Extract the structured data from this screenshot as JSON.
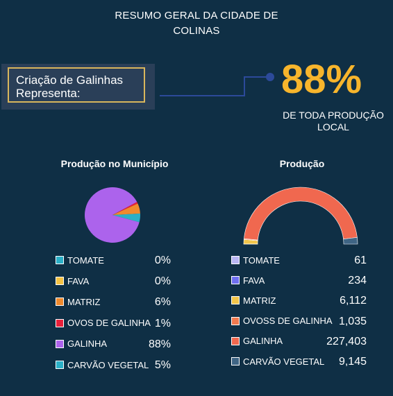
{
  "title": "RESUMO GERAL DA CIDADE DE COLINAS",
  "callout": {
    "text": "Criação de Galinhas Representa:",
    "percent": "88%",
    "subtext": "DE TODA PRODUÇÃO LOCAL"
  },
  "colors": {
    "background": "#0f2f45",
    "accent": "#f7b52c",
    "callout_border": "#d9b65c",
    "connector": "#2c4a9a"
  },
  "chart_data": [
    {
      "type": "pie",
      "title": "Produção no Município",
      "categories": [
        "TOMATE",
        "FAVA",
        "MATRIZ",
        "OVOS DE GALINHA",
        "GALINHA",
        "CARVÃO VEGETAL"
      ],
      "values": [
        0,
        0,
        6,
        1,
        88,
        5
      ],
      "value_labels": [
        "0%",
        "0%",
        "6%",
        "1%",
        "88%",
        "5%"
      ],
      "colors": [
        "#2bb0c7",
        "#f5c243",
        "#f08a2d",
        "#e8203a",
        "#ac63ec",
        "#2bb0c7"
      ],
      "legend_position": "bottom"
    },
    {
      "type": "pie",
      "title": "Produção",
      "style": "half-donut",
      "categories": [
        "TOMATE",
        "FAVA",
        "MATRIZ",
        "OVOSS DE GALINHA",
        "GALINHA",
        "CARVÃO VEGETAL"
      ],
      "values": [
        61,
        234,
        6112,
        1035,
        227403,
        9145
      ],
      "value_labels": [
        "61",
        "234",
        "6,112",
        "1,035",
        "227,403",
        "9,145"
      ],
      "colors": [
        "#b9b6f3",
        "#6f6ff0",
        "#f2c54a",
        "#f07a50",
        "#f0684f",
        "#3f6585"
      ],
      "legend_position": "bottom"
    }
  ]
}
